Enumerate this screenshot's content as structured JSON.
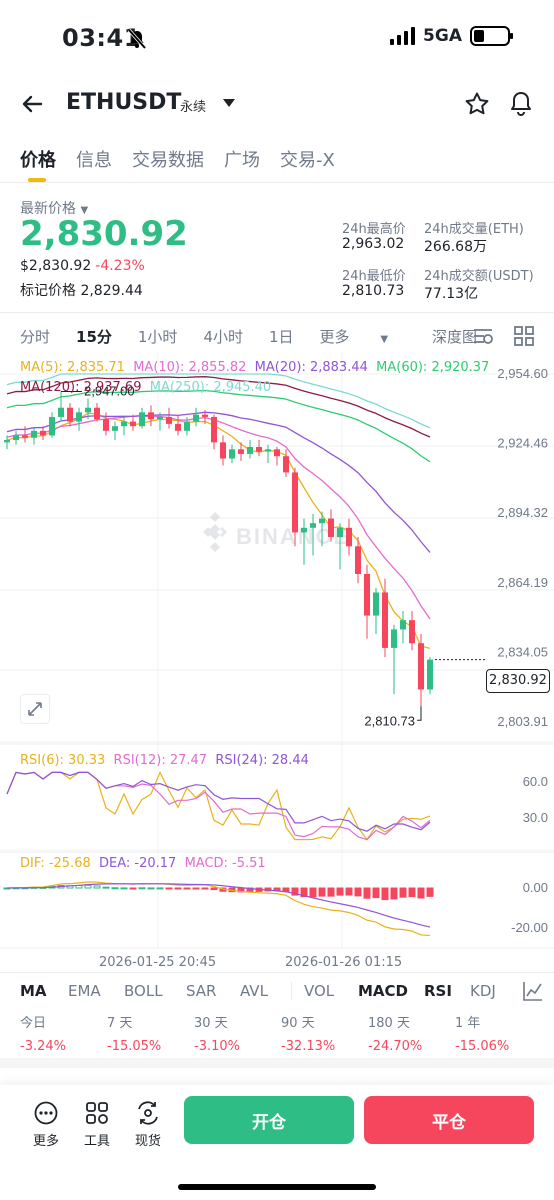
{
  "status": {
    "time": "03:41",
    "network": "5GA"
  },
  "header": {
    "symbol": "ETHUSDT",
    "contract_type": "永续"
  },
  "tabs": [
    "价格",
    "信息",
    "交易数据",
    "广场",
    "交易-X"
  ],
  "price": {
    "label": "最新价格",
    "last": "2,830.92",
    "usd": "$2,830.92",
    "change": "-4.23%",
    "mark_label": "标记价格",
    "mark_value": "2,829.44"
  },
  "stats": {
    "high_label": "24h最高价",
    "high": "2,963.02",
    "vol_eth_label": "24h成交量(ETH)",
    "vol_eth": "266.68万",
    "low_label": "24h最低价",
    "low": "2,810.73",
    "vol_usdt_label": "24h成交额(USDT)",
    "vol_usdt": "77.13亿"
  },
  "intervals": [
    "分时",
    "15分",
    "1小时",
    "4小时",
    "1日"
  ],
  "intervals_more": "更多",
  "depth_label": "深度图",
  "ma_legend": {
    "ma5": "MA(5): 2,835.71",
    "ma10": "MA(10): 2,855.82",
    "ma20": "MA(20): 2,883.44",
    "ma60": "MA(60): 2,920.37",
    "ma120": "MA(120): 2,937.69",
    "ma250": "MA(250): 2,945.40"
  },
  "colors": {
    "up": "#2ebd85",
    "down": "#f6465d",
    "ma5": "#e8b21b",
    "ma10": "#e36bd1",
    "ma20": "#8f55d6",
    "ma60": "#2ecc71",
    "ma120": "#8e1b47",
    "ma250": "#7fd9cf"
  },
  "chart_data": {
    "type": "candlestick",
    "price_axis_ticks": [
      "2,954.60",
      "2,924.46",
      "2,894.32",
      "2,864.19",
      "2,834.05",
      "2,803.91"
    ],
    "current_price": "2,830.92",
    "high_marker": "2,947.00",
    "low_marker": "2,810.73",
    "time_ticks": [
      "2026-01-25 20:45",
      "2026-01-26 01:15"
    ],
    "candles": [
      [
        2925,
        2928,
        2922,
        2926
      ],
      [
        2926,
        2930,
        2924,
        2928
      ],
      [
        2928,
        2932,
        2925,
        2927
      ],
      [
        2927,
        2931,
        2924,
        2930
      ],
      [
        2930,
        2932,
        2926,
        2928
      ],
      [
        2928,
        2938,
        2927,
        2936
      ],
      [
        2936,
        2947,
        2934,
        2940
      ],
      [
        2940,
        2942,
        2932,
        2934
      ],
      [
        2934,
        2940,
        2930,
        2938
      ],
      [
        2938,
        2944,
        2935,
        2940
      ],
      [
        2940,
        2942,
        2934,
        2935
      ],
      [
        2935,
        2938,
        2928,
        2930
      ],
      [
        2930,
        2934,
        2926,
        2932
      ],
      [
        2932,
        2936,
        2928,
        2934
      ],
      [
        2934,
        2937,
        2930,
        2932
      ],
      [
        2932,
        2940,
        2931,
        2938
      ],
      [
        2938,
        2941,
        2932,
        2935
      ],
      [
        2935,
        2938,
        2930,
        2936
      ],
      [
        2936,
        2940,
        2931,
        2933
      ],
      [
        2933,
        2937,
        2928,
        2930
      ],
      [
        2930,
        2936,
        2928,
        2934
      ],
      [
        2934,
        2940,
        2932,
        2937
      ],
      [
        2937,
        2939,
        2933,
        2936
      ],
      [
        2936,
        2937,
        2922,
        2925
      ],
      [
        2925,
        2928,
        2915,
        2918
      ],
      [
        2918,
        2924,
        2916,
        2922
      ],
      [
        2922,
        2925,
        2917,
        2920
      ],
      [
        2920,
        2926,
        2918,
        2923
      ],
      [
        2923,
        2926,
        2919,
        2921
      ],
      [
        2921,
        2924,
        2916,
        2922
      ],
      [
        2922,
        2923,
        2915,
        2919
      ],
      [
        2919,
        2922,
        2910,
        2912
      ],
      [
        2912,
        2914,
        2880,
        2886
      ],
      [
        2886,
        2892,
        2872,
        2888
      ],
      [
        2888,
        2894,
        2876,
        2890
      ],
      [
        2890,
        2895,
        2880,
        2892
      ],
      [
        2892,
        2896,
        2882,
        2884
      ],
      [
        2884,
        2890,
        2870,
        2888
      ],
      [
        2888,
        2892,
        2876,
        2880
      ],
      [
        2880,
        2884,
        2864,
        2868
      ],
      [
        2868,
        2872,
        2840,
        2850
      ],
      [
        2850,
        2862,
        2842,
        2860
      ],
      [
        2860,
        2866,
        2832,
        2836
      ],
      [
        2836,
        2846,
        2816,
        2844
      ],
      [
        2844,
        2852,
        2838,
        2848
      ],
      [
        2848,
        2852,
        2835,
        2838
      ],
      [
        2838,
        2842,
        2810.73,
        2818
      ],
      [
        2818,
        2832,
        2816,
        2830.92
      ]
    ],
    "rsi": {
      "labels": [
        "RSI(6): 30.33",
        "RSI(12): 27.47",
        "RSI(24): 28.44"
      ],
      "axis_ticks": [
        "60.0",
        "30.0"
      ]
    },
    "macd": {
      "labels": [
        "DIF: -25.68",
        "DEA: -20.17",
        "MACD: -5.51"
      ],
      "axis_ticks": [
        "0.00",
        "-20.00"
      ]
    }
  },
  "indicator_tabs": [
    "MA",
    "EMA",
    "BOLL",
    "SAR",
    "AVL",
    "VOL",
    "MACD",
    "RSI",
    "KDJ"
  ],
  "performance": [
    {
      "label": "今日",
      "value": "-3.24%"
    },
    {
      "label": "7 天",
      "value": "-15.05%"
    },
    {
      "label": "30 天",
      "value": "-3.10%"
    },
    {
      "label": "90 天",
      "value": "-32.13%"
    },
    {
      "label": "180 天",
      "value": "-24.70%"
    },
    {
      "label": "1 年",
      "value": "-15.06%"
    }
  ],
  "bottom": {
    "more": "更多",
    "tools": "工具",
    "spot": "现货",
    "open": "开仓",
    "close": "平仓"
  }
}
